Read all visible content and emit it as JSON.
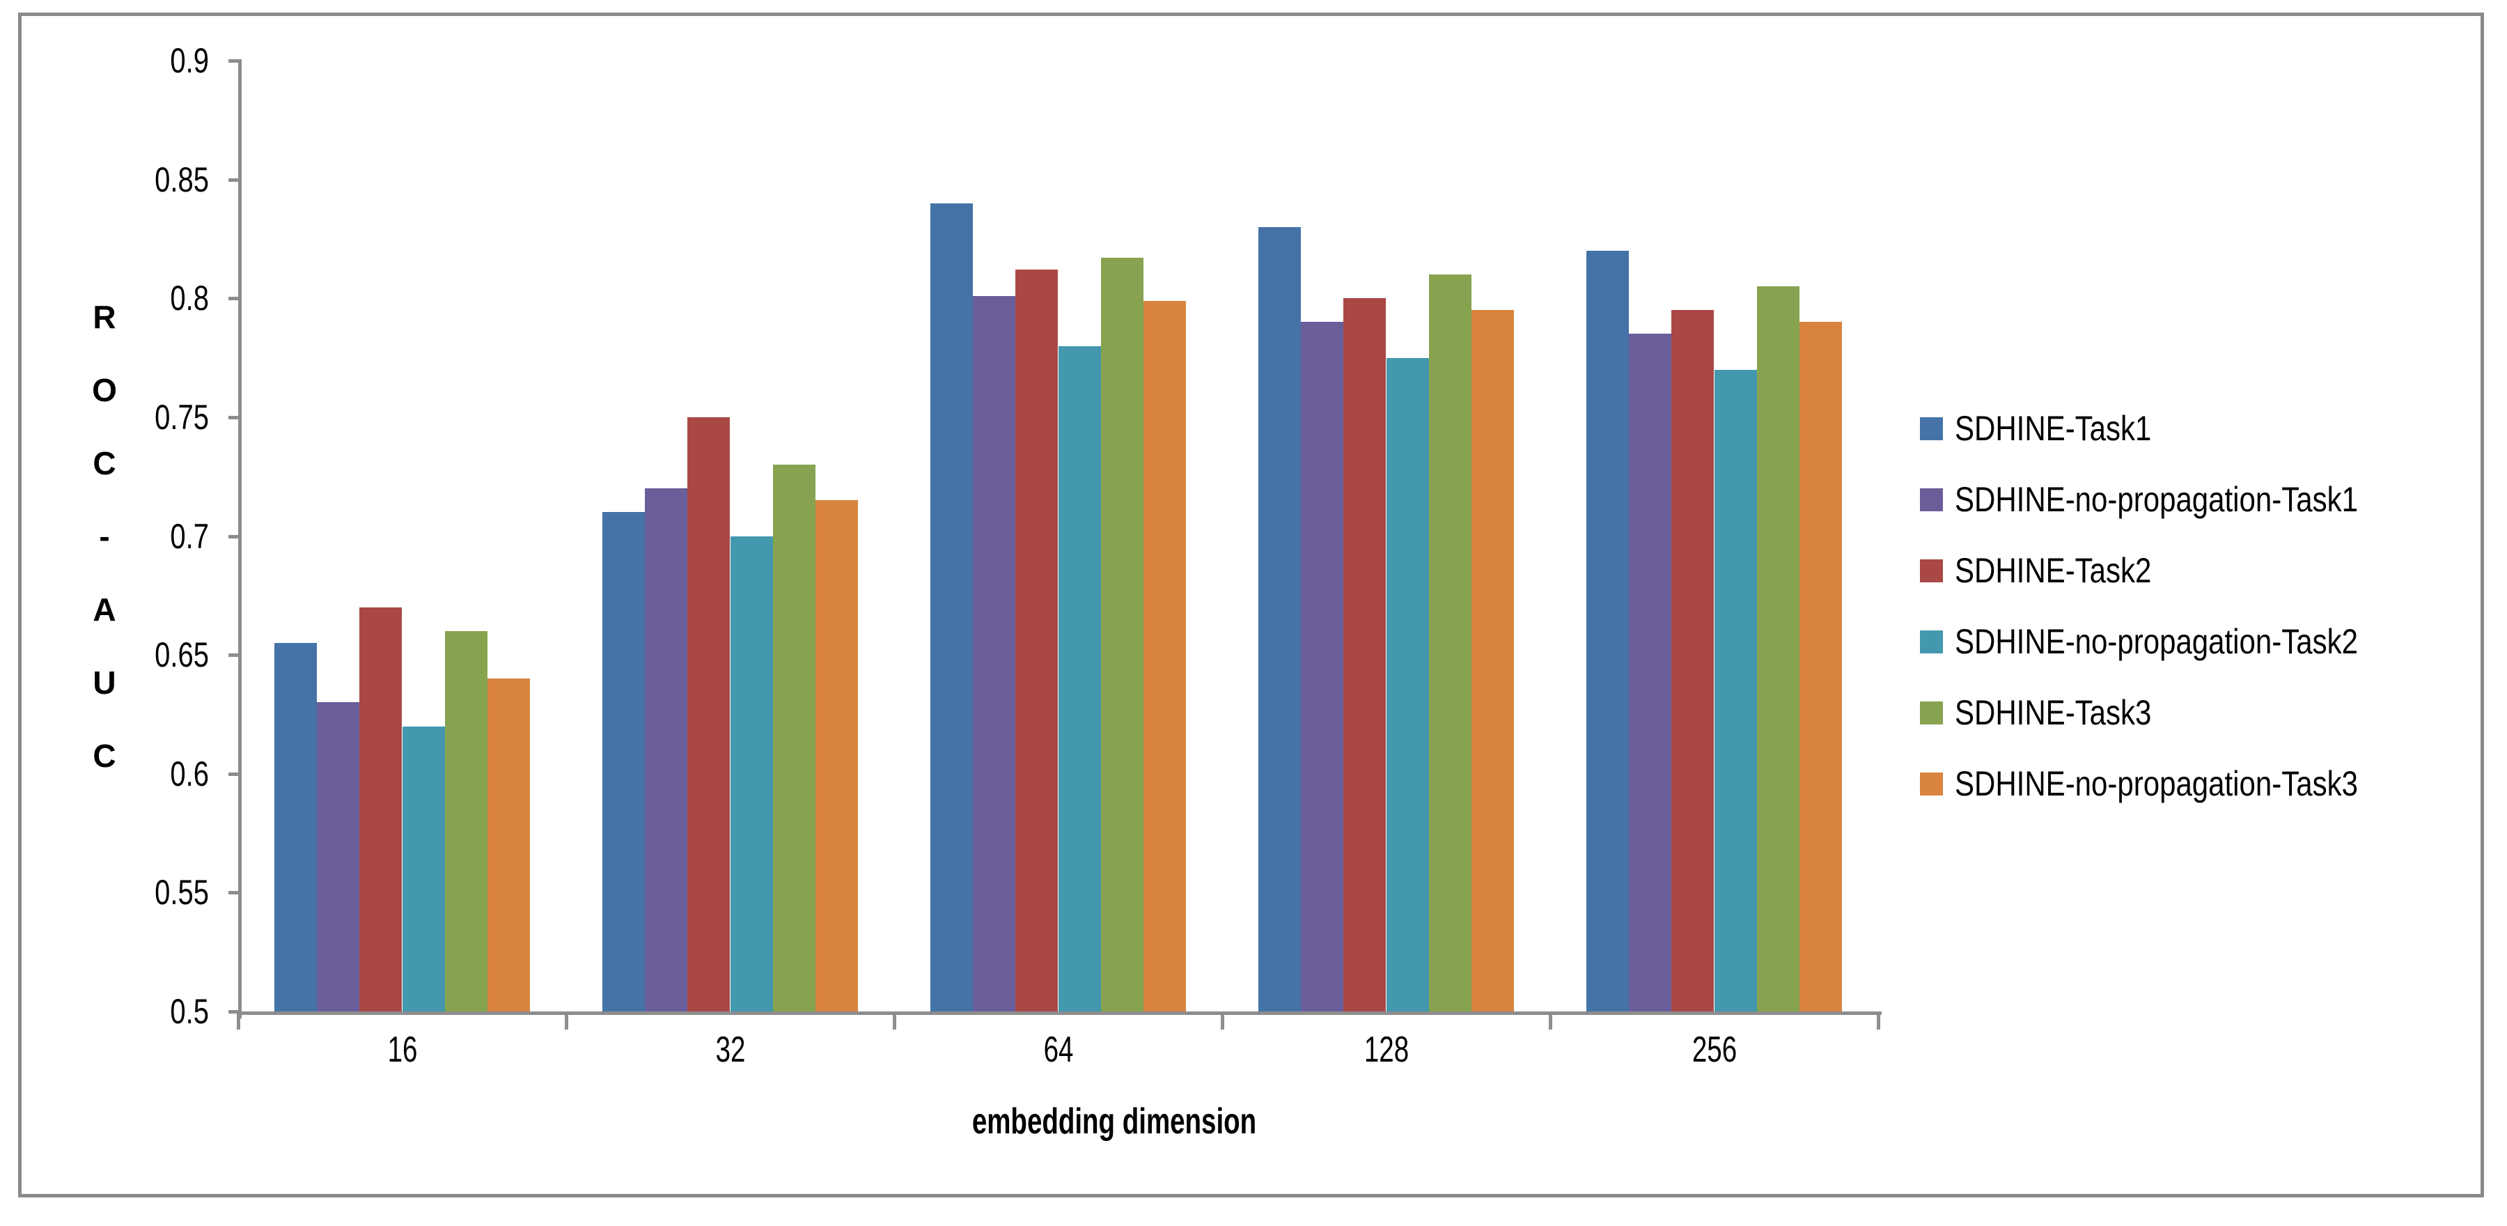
{
  "chart_data": {
    "type": "bar",
    "title": "",
    "xlabel": "embedding dimension",
    "ylabel": "ROC-AUC",
    "ylabel_stacked": [
      "R",
      "O",
      "C",
      "-",
      "A",
      "U",
      "C"
    ],
    "categories": [
      "16",
      "32",
      "64",
      "128",
      "256"
    ],
    "series": [
      {
        "name": "SDHINE-Task1",
        "color": "#4573a7",
        "values": [
          0.655,
          0.71,
          0.84,
          0.83,
          0.82
        ]
      },
      {
        "name": "SDHINE-no-propagation-Task1",
        "color": "#6a5d99",
        "values": [
          0.63,
          0.72,
          0.801,
          0.79,
          0.785
        ]
      },
      {
        "name": "SDHINE-Task2",
        "color": "#a94845",
        "values": [
          0.67,
          0.75,
          0.812,
          0.8,
          0.795
        ]
      },
      {
        "name": "SDHINE-no-propagation-Task2",
        "color": "#4498ae",
        "values": [
          0.62,
          0.7,
          0.78,
          0.775,
          0.77
        ]
      },
      {
        "name": "SDHINE-Task3",
        "color": "#88a350",
        "values": [
          0.66,
          0.73,
          0.817,
          0.81,
          0.805
        ]
      },
      {
        "name": "SDHINE-no-propagation-Task3",
        "color": "#d9843e",
        "values": [
          0.64,
          0.715,
          0.799,
          0.795,
          0.79
        ]
      }
    ],
    "y_ticks": [
      "0.9",
      "0.85",
      "0.8",
      "0.75",
      "0.7",
      "0.65",
      "0.6",
      "0.55",
      "0.5"
    ],
    "ylim": [
      0.5,
      0.9
    ],
    "y_tick_step": 0.05,
    "grid": false,
    "legend_position": "right"
  },
  "style": {
    "axis_color": "#8d8d8d",
    "border_color": "#8a8a8a",
    "background": "#ffffff",
    "text_color": "#000000"
  }
}
